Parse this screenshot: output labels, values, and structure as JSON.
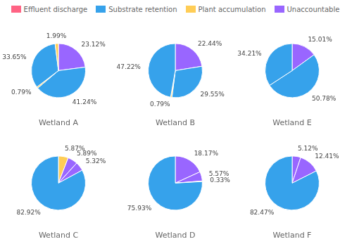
{
  "chart_data": [
    {
      "type": "pie",
      "title": "Wetland A",
      "values": [
        23.12,
        41.24,
        0.79,
        33.65,
        1.99
      ],
      "value_labels": [
        "23.12%",
        "41.24%",
        "0.79%",
        "33.65%",
        "1.99%"
      ],
      "data_labels": true,
      "colors": [
        "#9966ff",
        "#36a2eb",
        "#ffcd56",
        "#36a2eb",
        "#ffcd56"
      ]
    },
    {
      "type": "pie",
      "title": "Wetland B",
      "values": [
        22.44,
        29.55,
        0.79,
        47.22
      ],
      "value_labels": [
        "22.44%",
        "29.55%",
        "0.79%",
        "47.22%"
      ],
      "data_labels": true,
      "colors": [
        "#9966ff",
        "#36a2eb",
        "#ffcd56",
        "#36a2eb"
      ]
    },
    {
      "type": "pie",
      "title": "Wetland E",
      "values": [
        15.01,
        50.78,
        34.21
      ],
      "value_labels": [
        "15.01%",
        "50.78%",
        "34.21%"
      ],
      "data_labels": true,
      "colors": [
        "#9966ff",
        "#36a2eb",
        "#36a2eb"
      ]
    },
    {
      "type": "pie",
      "title": "Wetland C",
      "values": [
        5.87,
        5.89,
        5.32,
        82.92
      ],
      "value_labels": [
        "5.87%",
        "5.89%",
        "5.32%",
        "82.92%"
      ],
      "data_labels": true,
      "colors": [
        "#ffcd56",
        "#9966ff",
        "#9966ff",
        "#36a2eb"
      ]
    },
    {
      "type": "pie",
      "title": "Wetland D",
      "values": [
        18.17,
        5.57,
        0.33,
        75.93
      ],
      "value_labels": [
        "18.17%",
        "5.57%",
        "0.33%",
        "75.93%"
      ],
      "data_labels": true,
      "colors": [
        "#9966ff",
        "#9966ff",
        "#ffcd56",
        "#36a2eb"
      ]
    },
    {
      "type": "pie",
      "title": "Wetland F",
      "values": [
        5.12,
        12.41,
        82.47
      ],
      "value_labels": [
        "5.12%",
        "12.41%",
        "82.47%"
      ],
      "data_labels": true,
      "colors": [
        "#9966ff",
        "#9966ff",
        "#36a2eb"
      ]
    }
  ],
  "legend": "top",
  "series": [
    {
      "name": "Effluent discharge",
      "color": "#ff6384"
    },
    {
      "name": "Substrate retention",
      "color": "#36a2eb"
    },
    {
      "name": "Plant accumulation",
      "color": "#ffcd56"
    },
    {
      "name": "Unaccountable",
      "color": "#9966ff"
    }
  ]
}
